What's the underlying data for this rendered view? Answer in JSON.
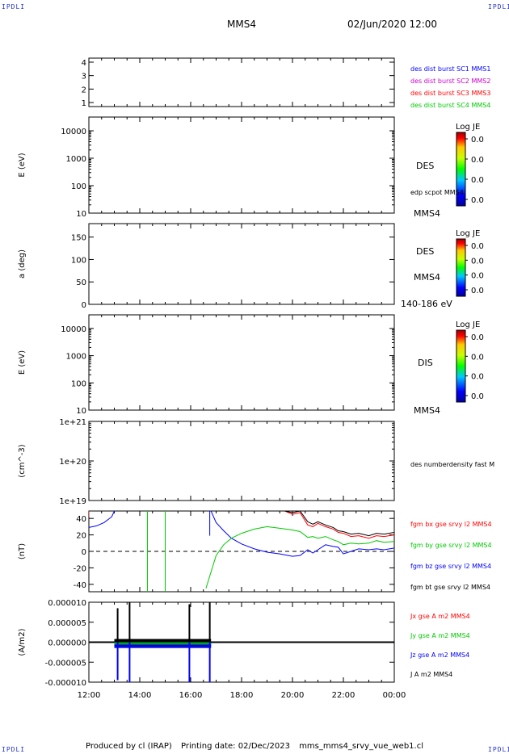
{
  "header": {
    "title": "MMS4",
    "datetime": "02/Jun/2020 12:00"
  },
  "corners": {
    "top_left": "IPDLI",
    "top_right": "IPDLI",
    "bottom_left": "IPDLI",
    "bottom_right": "IPDLI"
  },
  "footer": {
    "produced_by": "Produced by cl (IRAP)",
    "printing_date": "Printing date: 02/Dec/2023",
    "product": "mms_mms4_srvy_vue_web1.cl"
  },
  "x_axis": {
    "ticks": [
      "12:00",
      "14:00",
      "16:00",
      "18:00",
      "20:00",
      "22:00",
      "00:00"
    ],
    "tick_hours": [
      0,
      2,
      4,
      6,
      8,
      10,
      12
    ]
  },
  "colors": {
    "red": "#ff0000",
    "green": "#00c800",
    "blue": "#0000ff",
    "black": "#000000",
    "magenta": "#cc00cc"
  },
  "chart_data": [
    {
      "type": "line",
      "panel": "burst",
      "ylabel": "",
      "yticks": [
        "1",
        "2",
        "3",
        "4"
      ],
      "ylim": [
        0.7,
        4.3
      ],
      "legend": [
        {
          "label": "des dist burst SC1 MMS1",
          "color": "#0000ff"
        },
        {
          "label": "des dist burst SC2 MMS2",
          "color": "#cc00cc"
        },
        {
          "label": "des dist burst SC3 MMS3",
          "color": "#ff0000"
        },
        {
          "label": "des dist burst SC4 MMS4",
          "color": "#00c800"
        }
      ]
    },
    {
      "type": "heatmap",
      "panel": "des-energy",
      "ylabel": "E (eV)",
      "yticks": [
        "10",
        "100",
        "1000",
        "10000"
      ],
      "scale": "log",
      "right_labels": [
        "DES",
        "edp scpot MMS4",
        "MMS4"
      ],
      "colorbar": {
        "title": "Log JE",
        "ticks": [
          "0.0",
          "0.0",
          "0.0",
          "0.0"
        ]
      }
    },
    {
      "type": "heatmap",
      "panel": "des-pitch",
      "ylabel": "a (deg)",
      "yticks": [
        "0",
        "50",
        "100",
        "150"
      ],
      "ylim": [
        0,
        180
      ],
      "right_labels": [
        "DES",
        "MMS4",
        "140-186 eV"
      ],
      "colorbar": {
        "title": "Log JE",
        "ticks": [
          "0.0",
          "0.0",
          "0.0",
          "0.0"
        ]
      }
    },
    {
      "type": "heatmap",
      "panel": "dis-energy",
      "ylabel": "E (eV)",
      "yticks": [
        "10",
        "100",
        "1000",
        "10000"
      ],
      "scale": "log",
      "right_labels": [
        "DIS",
        "MMS4"
      ],
      "colorbar": {
        "title": "Log JE",
        "ticks": [
          "0.0",
          "0.0",
          "0.0",
          "0.0"
        ]
      }
    },
    {
      "type": "line",
      "panel": "density",
      "ylabel": "(cm^-3)",
      "yticks": [
        "1e+19",
        "1e+20",
        "1e+21"
      ],
      "scale": "log",
      "legend": [
        {
          "label": "des numberdensity fast M",
          "color": "#000000"
        }
      ]
    },
    {
      "type": "line",
      "panel": "magnetic-field",
      "ylabel": "(nT)",
      "yticks": [
        "-40",
        "-20",
        "0",
        "20",
        "40"
      ],
      "ylim": [
        -49,
        49
      ],
      "zero_line": "dashed",
      "legend": [
        {
          "label": "fgm bx gse srvy l2 MMS4",
          "color": "#ff0000"
        },
        {
          "label": "fgm by gse srvy l2 MMS4",
          "color": "#00c800"
        },
        {
          "label": "fgm bz gse srvy l2 MMS4",
          "color": "#0000ff"
        },
        {
          "label": "fgm bt gse srvy l2 MMS4",
          "color": "#000000"
        }
      ],
      "series": [
        {
          "name": "fgm bz gse srvy l2 MMS4",
          "color": "#0000ff",
          "x": [
            0.0,
            0.3,
            0.6,
            0.9,
            1.0
          ],
          "values": [
            29,
            31,
            35,
            42,
            49
          ]
        },
        {
          "name": "fgm bz gse srvy l2 MMS4",
          "color": "#0000ff",
          "x": [
            4.8,
            5.0,
            5.3,
            5.6,
            6.0,
            6.5,
            7.0,
            7.5,
            8.0,
            8.3,
            8.6,
            8.8,
            9.0,
            9.3,
            9.6,
            9.8,
            10.0,
            10.3,
            10.6,
            11.0,
            11.3,
            11.6,
            12.0
          ],
          "values": [
            49,
            35,
            25,
            16,
            9,
            3,
            -1,
            -3,
            -6,
            -5,
            2,
            -2,
            2,
            8,
            6,
            5,
            -3,
            0,
            3,
            2,
            3,
            2,
            4
          ]
        },
        {
          "name": "fgm by gse srvy l2 MMS4",
          "color": "#00c800",
          "x": [
            4.6,
            4.8,
            5.0,
            5.3,
            5.6,
            6.0,
            6.5,
            7.0,
            7.5,
            8.0,
            8.3,
            8.6,
            8.8,
            9.0,
            9.3,
            9.6,
            9.8,
            10.0,
            10.3,
            10.6,
            11.0,
            11.3,
            11.6,
            12.0
          ],
          "values": [
            -45,
            -25,
            -5,
            8,
            16,
            22,
            27,
            30,
            28,
            26,
            24,
            17,
            18,
            16,
            18,
            14,
            12,
            8,
            10,
            9,
            10,
            13,
            11,
            12
          ]
        },
        {
          "name": "fgm bx gse srvy l2 MMS4",
          "color": "#ff0000",
          "x": [
            7.7,
            8.0,
            8.3,
            8.6,
            8.8,
            9.0,
            9.3,
            9.6,
            9.8,
            10.0,
            10.3,
            10.6,
            11.0,
            11.3,
            11.6,
            12.0
          ],
          "values": [
            49,
            45,
            47,
            32,
            30,
            34,
            30,
            27,
            23,
            22,
            18,
            19,
            16,
            19,
            18,
            20
          ]
        },
        {
          "name": "fgm bt gse srvy l2 MMS4",
          "color": "#000000",
          "x": [
            7.7,
            8.0,
            8.3,
            8.6,
            8.8,
            9.0,
            9.3,
            9.6,
            9.8,
            10.0,
            10.3,
            10.6,
            11.0,
            11.3,
            11.6,
            12.0
          ],
          "values": [
            49,
            47,
            49,
            36,
            33,
            36,
            32,
            29,
            25,
            24,
            21,
            22,
            19,
            22,
            21,
            23
          ]
        }
      ]
    },
    {
      "type": "line",
      "panel": "current-density",
      "ylabel": "(A/m2)",
      "yticks": [
        "-0.000010",
        "-0.000005",
        "0.000000",
        "0.000005",
        "0.000010"
      ],
      "ylim": [
        -1e-05,
        1e-05
      ],
      "legend": [
        {
          "label": "Jx gse A m2 MMS4",
          "color": "#ff0000"
        },
        {
          "label": "Jy gse A m2 MMS4",
          "color": "#00c800"
        },
        {
          "label": "Jz gse A m2 MMS4",
          "color": "#0000ff"
        },
        {
          "label": "J A m2 MMS4",
          "color": "#000000"
        }
      ],
      "spikes": [
        {
          "x": 1.13,
          "max": 8.5e-06,
          "min": -9.5e-06
        },
        {
          "x": 1.6,
          "max": 1e-05,
          "min": -1e-05
        },
        {
          "x": 3.95,
          "max": 9.5e-06,
          "min": -1e-05
        },
        {
          "x": 4.75,
          "max": 1e-05,
          "min": -1e-05
        }
      ]
    }
  ]
}
